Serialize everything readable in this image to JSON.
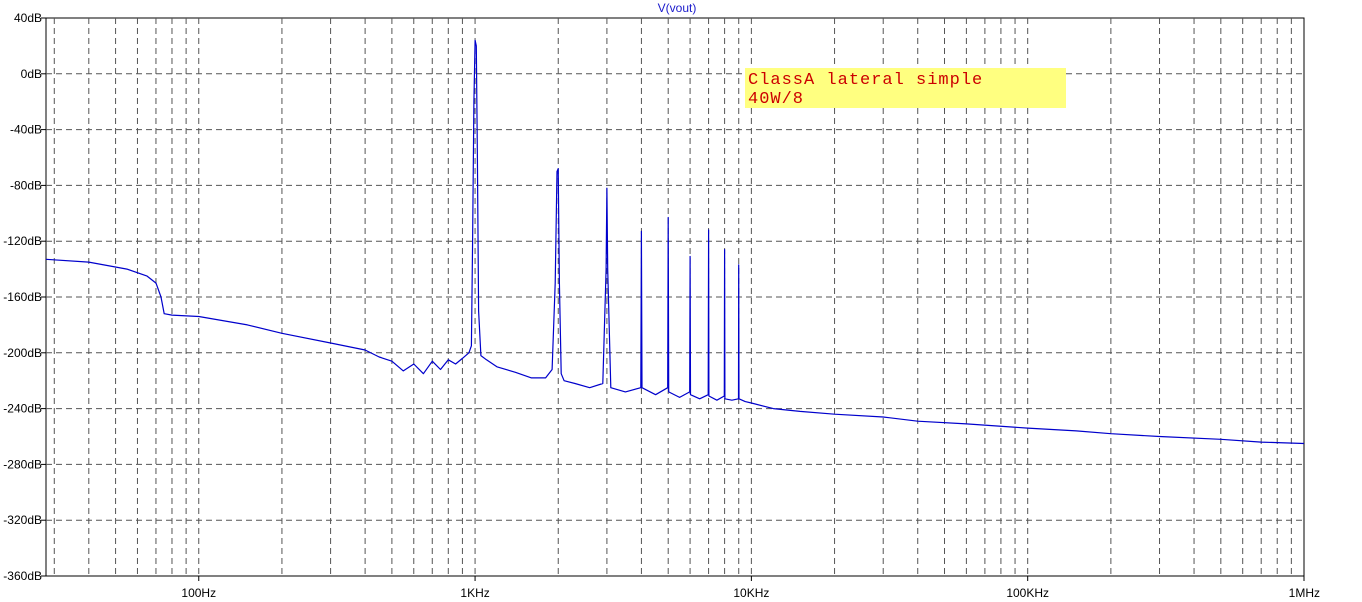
{
  "chart_data": {
    "type": "line",
    "title": "V(vout)",
    "xlabel": "",
    "ylabel": "",
    "x_scale": "log",
    "xlim": [
      28,
      1000000
    ],
    "ylim": [
      -360,
      40
    ],
    "grid": true,
    "y_ticks": [
      {
        "value": 40,
        "label": "40dB"
      },
      {
        "value": 0,
        "label": "0dB"
      },
      {
        "value": -40,
        "label": "-40dB"
      },
      {
        "value": -80,
        "label": "-80dB"
      },
      {
        "value": -120,
        "label": "-120dB"
      },
      {
        "value": -160,
        "label": "-160dB"
      },
      {
        "value": -200,
        "label": "-200dB"
      },
      {
        "value": -240,
        "label": "-240dB"
      },
      {
        "value": -280,
        "label": "-280dB"
      },
      {
        "value": -320,
        "label": "-320dB"
      },
      {
        "value": -360,
        "label": "-360dB"
      }
    ],
    "x_ticks": [
      {
        "value": 100,
        "label": "100Hz"
      },
      {
        "value": 1000,
        "label": "1KHz"
      },
      {
        "value": 10000,
        "label": "10KHz"
      },
      {
        "value": 100000,
        "label": "100KHz"
      },
      {
        "value": 1000000,
        "label": "1MHz"
      }
    ],
    "series": [
      {
        "color": "#0000cc",
        "x": [
          28,
          40,
          55,
          65,
          70,
          73,
          75,
          80,
          100,
          150,
          200,
          300,
          400,
          450,
          500,
          550,
          600,
          650,
          700,
          750,
          800,
          850,
          900,
          950,
          970,
          980,
          990,
          1000,
          1010,
          1020,
          1030,
          1050,
          1100,
          1200,
          1400,
          1600,
          1800,
          1900,
          1950,
          1980,
          2000,
          2020,
          2050,
          2100,
          2300,
          2600,
          2900,
          2980,
          3000,
          3020,
          3100,
          3500,
          3980,
          4000,
          4020,
          4500,
          4980,
          5000,
          5020,
          5500,
          5980,
          6000,
          6020,
          6500,
          6980,
          7000,
          7020,
          7500,
          7980,
          8000,
          8020,
          8500,
          8980,
          9000,
          9020,
          9500,
          10000,
          12000,
          15000,
          20000,
          30000,
          40000,
          60000,
          100000,
          150000,
          200000,
          300000,
          500000,
          700000,
          1000000
        ],
        "y": [
          -133,
          -135,
          -140,
          -145,
          -150,
          -160,
          -172,
          -173,
          -174,
          -180,
          -186,
          -193,
          -198,
          -203,
          -206,
          -213,
          -208,
          -215,
          -206,
          -212,
          -205,
          -208,
          -204,
          -200,
          -195,
          -120,
          -20,
          24,
          20,
          -60,
          -170,
          -202,
          -205,
          -210,
          -214,
          -218,
          -218,
          -212,
          -150,
          -70,
          -68,
          -150,
          -215,
          -220,
          -222,
          -225,
          -222,
          -140,
          -82,
          -140,
          -225,
          -228,
          -225,
          -113,
          -225,
          -230,
          -225,
          -103,
          -228,
          -232,
          -228,
          -131,
          -230,
          -233,
          -230,
          -112,
          -231,
          -234,
          -231,
          -126,
          -233,
          -234,
          -233,
          -137,
          -233,
          -235,
          -236,
          -240,
          -242,
          -244,
          -246,
          -249,
          -251,
          -254,
          -256,
          -258,
          -260,
          -262,
          -264,
          -265
        ]
      }
    ],
    "annotation": {
      "line1": "ClassA lateral simple",
      "line2": "40W/8",
      "background": "#ffff80",
      "color": "#cc0000"
    },
    "colors": {
      "trace": "#0000cc",
      "grid": "#555555",
      "frame": "#000000",
      "title": "#1a1acc"
    }
  }
}
